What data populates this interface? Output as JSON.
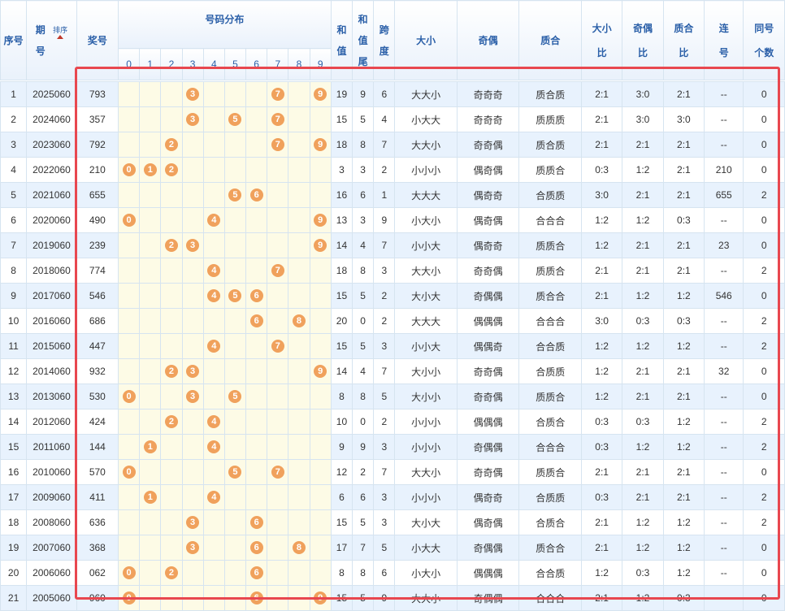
{
  "headers": {
    "seq": "序号",
    "period_top": "期",
    "period_bottom": "号",
    "sort_label": "排序",
    "prize": "奖号",
    "distribution": "号码分布",
    "digits": [
      "0",
      "1",
      "2",
      "3",
      "4",
      "5",
      "6",
      "7",
      "8",
      "9"
    ],
    "sum_top": "和",
    "sum_bottom": "值",
    "tail_top": "和",
    "tail_mid": "值",
    "tail_bottom": "尾",
    "span_top": "跨",
    "span_bottom": "度",
    "size": "大小",
    "parity": "奇偶",
    "prime": "质合",
    "size_ratio_top": "大小",
    "size_ratio_bottom": "比",
    "parity_ratio_top": "奇偶",
    "parity_ratio_bottom": "比",
    "prime_ratio_top": "质合",
    "prime_ratio_bottom": "比",
    "consec_top": "连",
    "consec_bottom": "号",
    "same_top": "同号",
    "same_bottom": "个数"
  },
  "colors": {
    "ball": "#f0a15c",
    "header_text": "#2a5fa8",
    "highlight": "#e8474f",
    "row_alt": "#e8f2fd",
    "dist_bg": "#fdfbe6"
  },
  "rows": [
    {
      "seq": "1",
      "period": "2025060",
      "prize": "793",
      "sum": "19",
      "tail": "9",
      "span": "6",
      "size": "大大小",
      "parity": "奇奇奇",
      "prime": "质合质",
      "sr": "2:1",
      "pr": "3:0",
      "qr": "2:1",
      "consec": "--",
      "same": "0"
    },
    {
      "seq": "2",
      "period": "2024060",
      "prize": "357",
      "sum": "15",
      "tail": "5",
      "span": "4",
      "size": "小大大",
      "parity": "奇奇奇",
      "prime": "质质质",
      "sr": "2:1",
      "pr": "3:0",
      "qr": "3:0",
      "consec": "--",
      "same": "0"
    },
    {
      "seq": "3",
      "period": "2023060",
      "prize": "792",
      "sum": "18",
      "tail": "8",
      "span": "7",
      "size": "大大小",
      "parity": "奇奇偶",
      "prime": "质合质",
      "sr": "2:1",
      "pr": "2:1",
      "qr": "2:1",
      "consec": "--",
      "same": "0"
    },
    {
      "seq": "4",
      "period": "2022060",
      "prize": "210",
      "sum": "3",
      "tail": "3",
      "span": "2",
      "size": "小小小",
      "parity": "偶奇偶",
      "prime": "质质合",
      "sr": "0:3",
      "pr": "1:2",
      "qr": "2:1",
      "consec": "210",
      "same": "0"
    },
    {
      "seq": "5",
      "period": "2021060",
      "prize": "655",
      "sum": "16",
      "tail": "6",
      "span": "1",
      "size": "大大大",
      "parity": "偶奇奇",
      "prime": "合质质",
      "sr": "3:0",
      "pr": "2:1",
      "qr": "2:1",
      "consec": "655",
      "same": "2"
    },
    {
      "seq": "6",
      "period": "2020060",
      "prize": "490",
      "sum": "13",
      "tail": "3",
      "span": "9",
      "size": "小大小",
      "parity": "偶奇偶",
      "prime": "合合合",
      "sr": "1:2",
      "pr": "1:2",
      "qr": "0:3",
      "consec": "--",
      "same": "0"
    },
    {
      "seq": "7",
      "period": "2019060",
      "prize": "239",
      "sum": "14",
      "tail": "4",
      "span": "7",
      "size": "小小大",
      "parity": "偶奇奇",
      "prime": "质质合",
      "sr": "1:2",
      "pr": "2:1",
      "qr": "2:1",
      "consec": "23",
      "same": "0"
    },
    {
      "seq": "8",
      "period": "2018060",
      "prize": "774",
      "sum": "18",
      "tail": "8",
      "span": "3",
      "size": "大大小",
      "parity": "奇奇偶",
      "prime": "质质合",
      "sr": "2:1",
      "pr": "2:1",
      "qr": "2:1",
      "consec": "--",
      "same": "2"
    },
    {
      "seq": "9",
      "period": "2017060",
      "prize": "546",
      "sum": "15",
      "tail": "5",
      "span": "2",
      "size": "大小大",
      "parity": "奇偶偶",
      "prime": "质合合",
      "sr": "2:1",
      "pr": "1:2",
      "qr": "1:2",
      "consec": "546",
      "same": "0"
    },
    {
      "seq": "10",
      "period": "2016060",
      "prize": "686",
      "sum": "20",
      "tail": "0",
      "span": "2",
      "size": "大大大",
      "parity": "偶偶偶",
      "prime": "合合合",
      "sr": "3:0",
      "pr": "0:3",
      "qr": "0:3",
      "consec": "--",
      "same": "2"
    },
    {
      "seq": "11",
      "period": "2015060",
      "prize": "447",
      "sum": "15",
      "tail": "5",
      "span": "3",
      "size": "小小大",
      "parity": "偶偶奇",
      "prime": "合合质",
      "sr": "1:2",
      "pr": "1:2",
      "qr": "1:2",
      "consec": "--",
      "same": "2"
    },
    {
      "seq": "12",
      "period": "2014060",
      "prize": "932",
      "sum": "14",
      "tail": "4",
      "span": "7",
      "size": "大小小",
      "parity": "奇奇偶",
      "prime": "合质质",
      "sr": "1:2",
      "pr": "2:1",
      "qr": "2:1",
      "consec": "32",
      "same": "0"
    },
    {
      "seq": "13",
      "period": "2013060",
      "prize": "530",
      "sum": "8",
      "tail": "8",
      "span": "5",
      "size": "大小小",
      "parity": "奇奇偶",
      "prime": "质质合",
      "sr": "1:2",
      "pr": "2:1",
      "qr": "2:1",
      "consec": "--",
      "same": "0"
    },
    {
      "seq": "14",
      "period": "2012060",
      "prize": "424",
      "sum": "10",
      "tail": "0",
      "span": "2",
      "size": "小小小",
      "parity": "偶偶偶",
      "prime": "合质合",
      "sr": "0:3",
      "pr": "0:3",
      "qr": "1:2",
      "consec": "--",
      "same": "2"
    },
    {
      "seq": "15",
      "period": "2011060",
      "prize": "144",
      "sum": "9",
      "tail": "9",
      "span": "3",
      "size": "小小小",
      "parity": "奇偶偶",
      "prime": "合合合",
      "sr": "0:3",
      "pr": "1:2",
      "qr": "1:2",
      "consec": "--",
      "same": "2"
    },
    {
      "seq": "16",
      "period": "2010060",
      "prize": "570",
      "sum": "12",
      "tail": "2",
      "span": "7",
      "size": "大大小",
      "parity": "奇奇偶",
      "prime": "质质合",
      "sr": "2:1",
      "pr": "2:1",
      "qr": "2:1",
      "consec": "--",
      "same": "0"
    },
    {
      "seq": "17",
      "period": "2009060",
      "prize": "411",
      "sum": "6",
      "tail": "6",
      "span": "3",
      "size": "小小小",
      "parity": "偶奇奇",
      "prime": "合质质",
      "sr": "0:3",
      "pr": "2:1",
      "qr": "2:1",
      "consec": "--",
      "same": "2"
    },
    {
      "seq": "18",
      "period": "2008060",
      "prize": "636",
      "sum": "15",
      "tail": "5",
      "span": "3",
      "size": "大小大",
      "parity": "偶奇偶",
      "prime": "合质合",
      "sr": "2:1",
      "pr": "1:2",
      "qr": "1:2",
      "consec": "--",
      "same": "2"
    },
    {
      "seq": "19",
      "period": "2007060",
      "prize": "368",
      "sum": "17",
      "tail": "7",
      "span": "5",
      "size": "小大大",
      "parity": "奇偶偶",
      "prime": "质合合",
      "sr": "2:1",
      "pr": "1:2",
      "qr": "1:2",
      "consec": "--",
      "same": "0"
    },
    {
      "seq": "20",
      "period": "2006060",
      "prize": "062",
      "sum": "8",
      "tail": "8",
      "span": "6",
      "size": "小大小",
      "parity": "偶偶偶",
      "prime": "合合质",
      "sr": "1:2",
      "pr": "0:3",
      "qr": "1:2",
      "consec": "--",
      "same": "0"
    },
    {
      "seq": "21",
      "period": "2005060",
      "prize": "960",
      "sum": "15",
      "tail": "5",
      "span": "9",
      "size": "大大小",
      "parity": "奇偶偶",
      "prime": "合合合",
      "sr": "2:1",
      "pr": "1:2",
      "qr": "0:3",
      "consec": "--",
      "same": "0"
    }
  ]
}
